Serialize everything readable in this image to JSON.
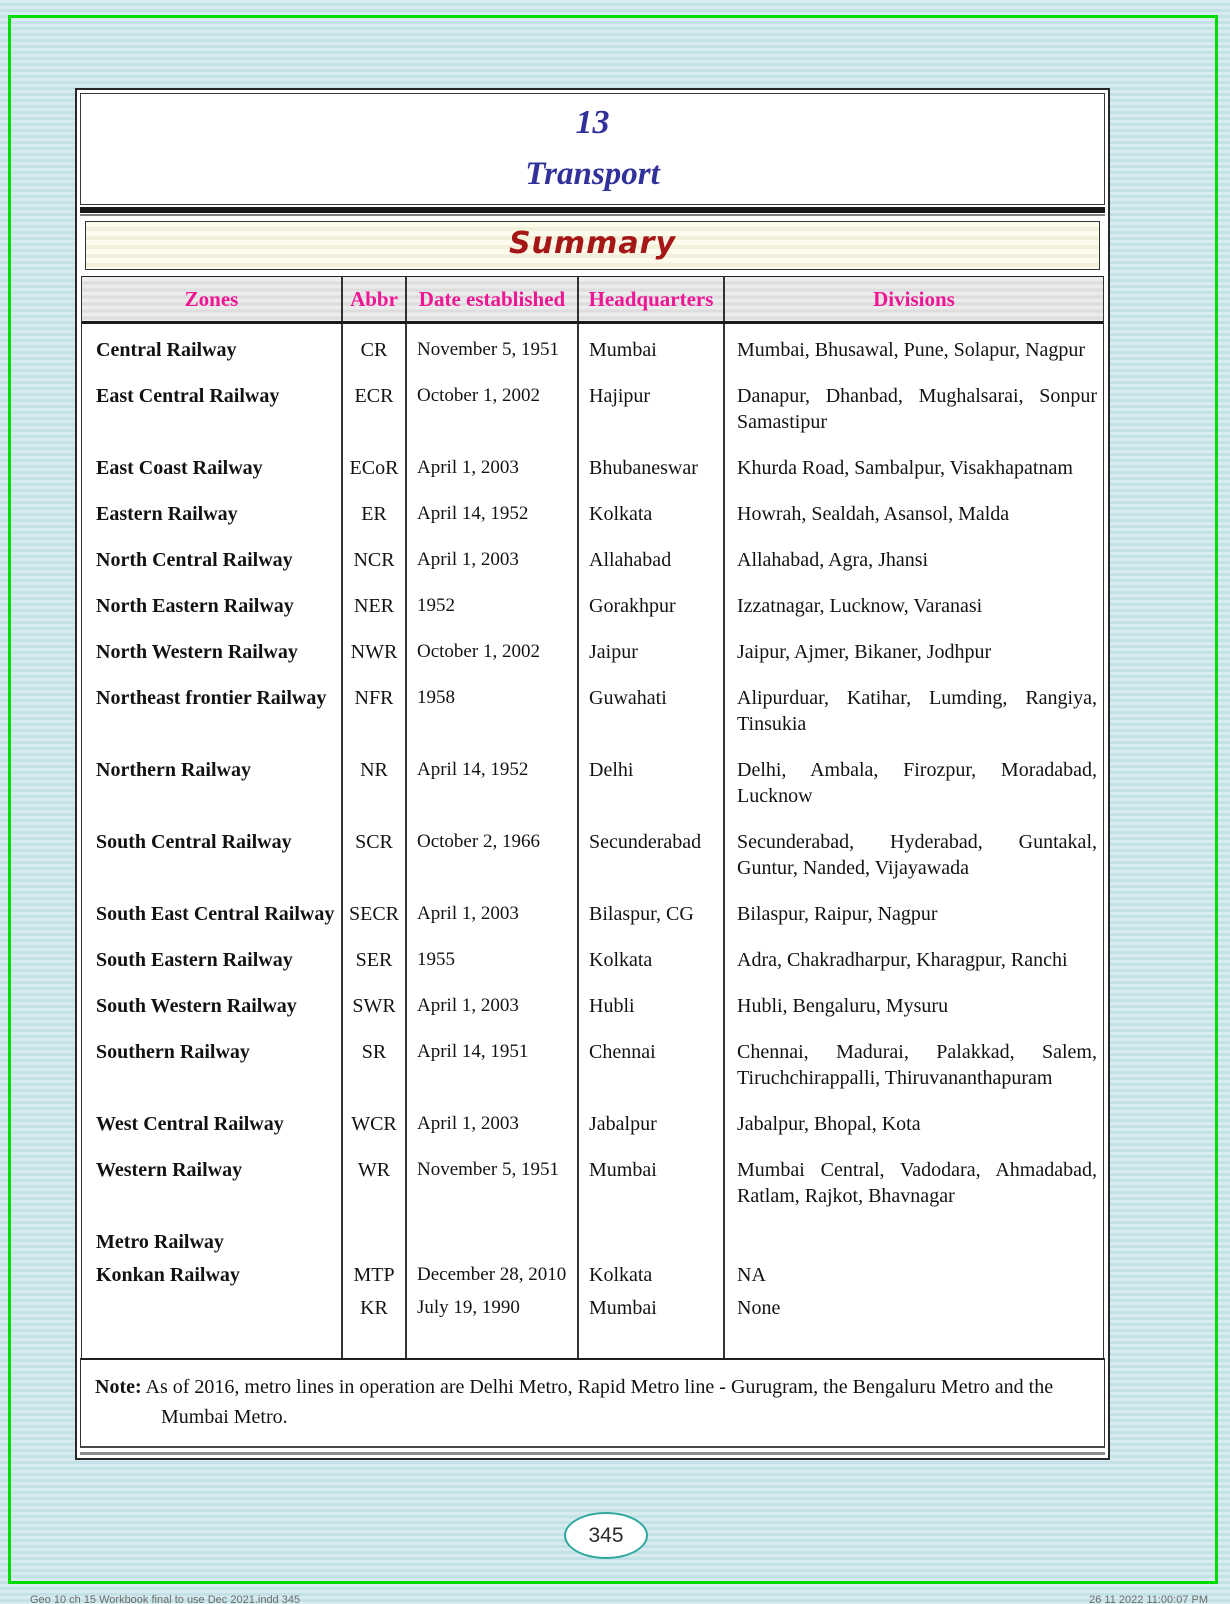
{
  "header": {
    "chapter_number": "13",
    "chapter_title": "Transport"
  },
  "summary": {
    "title": "Summary"
  },
  "table": {
    "headers": [
      "Zones",
      "Abbr",
      "Date established",
      "Headquarters",
      "Divisions"
    ],
    "rows": [
      {
        "zone": "Central Railway",
        "abbr": "CR",
        "date": "November 5, 1951",
        "hq": "Mumbai",
        "divisions": "Mumbai, Bhusawal, Pune, Solapur, Nagpur"
      },
      {
        "zone": "East Central Railway",
        "abbr": "ECR",
        "date": "October 1, 2002",
        "hq": "Hajipur",
        "divisions": "Danapur, Dhanbad, Mughalsarai, Sonpur Samastipur"
      },
      {
        "zone": "East Coast Railway",
        "abbr": "ECoR",
        "date": "April 1, 2003",
        "hq": "Bhubaneswar",
        "divisions": "Khurda Road, Sambalpur, Visakhapatnam"
      },
      {
        "zone": "Eastern Railway",
        "abbr": "ER",
        "date": "April 14, 1952",
        "hq": "Kolkata",
        "divisions": "Howrah, Sealdah, Asansol, Malda"
      },
      {
        "zone": "North Central Railway",
        "abbr": "NCR",
        "date": "April 1, 2003",
        "hq": "Allahabad",
        "divisions": "Allahabad, Agra, Jhansi"
      },
      {
        "zone": "North Eastern Railway",
        "abbr": "NER",
        "date": "1952",
        "hq": "Gorakhpur",
        "divisions": "Izzatnagar, Lucknow, Varanasi"
      },
      {
        "zone": "North Western Railway",
        "abbr": "NWR",
        "date": "October 1, 2002",
        "hq": "Jaipur",
        "divisions": "Jaipur, Ajmer, Bikaner, Jodhpur"
      },
      {
        "zone": "Northeast frontier Railway",
        "abbr": "NFR",
        "date": "1958",
        "hq": "Guwahati",
        "divisions": "Alipurduar, Katihar, Lumding, Rangiya, Tinsukia"
      },
      {
        "zone": "Northern Railway",
        "abbr": "NR",
        "date": "April 14, 1952",
        "hq": "Delhi",
        "divisions": "Delhi, Ambala, Firozpur, Moradabad, Lucknow"
      },
      {
        "zone": "South Central Railway",
        "abbr": "SCR",
        "date": "October 2, 1966",
        "hq": "Secunderabad",
        "divisions": "Secunderabad, Hyderabad, Guntakal, Guntur, Nanded, Vijayawada"
      },
      {
        "zone": "South East Central Railway",
        "abbr": "SECR",
        "date": "April 1, 2003",
        "hq": "Bilaspur, CG",
        "divisions": "Bilaspur, Raipur, Nagpur"
      },
      {
        "zone": "South Eastern Railway",
        "abbr": "SER",
        "date": "1955",
        "hq": "Kolkata",
        "divisions": "Adra, Chakradharpur, Kharagpur, Ranchi"
      },
      {
        "zone": "South Western Railway",
        "abbr": "SWR",
        "date": "April 1, 2003",
        "hq": "Hubli",
        "divisions": "Hubli, Bengaluru, Mysuru"
      },
      {
        "zone": "Southern Railway",
        "abbr": "SR",
        "date": "April 14, 1951",
        "hq": "Chennai",
        "divisions": "Chennai, Madurai, Palakkad, Salem, Tiruchchirappalli, Thiruvananthapuram"
      },
      {
        "zone": "West Central Railway",
        "abbr": "WCR",
        "date": "April 1, 2003",
        "hq": "Jabalpur",
        "divisions": "Jabalpur, Bhopal, Kota"
      },
      {
        "zone": "Western Railway",
        "abbr": "WR",
        "date": "November 5, 1951",
        "hq": "Mumbai",
        "divisions": "Mumbai Central, Vadodara, Ahmadabad, Ratlam, Rajkot, Bhavnagar"
      },
      {
        "zone": "Metro Railway",
        "abbr": "",
        "date": "",
        "hq": "",
        "divisions": ""
      },
      {
        "zone": "Konkan Railway",
        "abbr": "MTP",
        "date": "December 28, 2010",
        "hq": "Kolkata",
        "divisions": "NA"
      },
      {
        "zone": "",
        "abbr": "KR",
        "date": "July 19, 1990",
        "hq": "Mumbai",
        "divisions": "None"
      }
    ]
  },
  "note": {
    "label": "Note:",
    "text": "As of 2016, metro lines in operation are Delhi Metro, Rapid Metro line - Gurugram, the Bengaluru Metro and the Mumbai Metro."
  },
  "footer": {
    "page_number": "345",
    "left_text": "Geo 10 ch 15 Workbook final to use Dec 2021.indd   345",
    "right_text": "26 11 2022   11:00:07 PM"
  },
  "colors": {
    "header_pink": "#ee1694",
    "title_blue": "#31319c",
    "summary_red": "#a51616",
    "frame_green": "#00dc00",
    "oval_teal": "#2ea79f",
    "page_bg_light": "#d8ecf0",
    "page_bg_dark": "#c2e2e8"
  }
}
